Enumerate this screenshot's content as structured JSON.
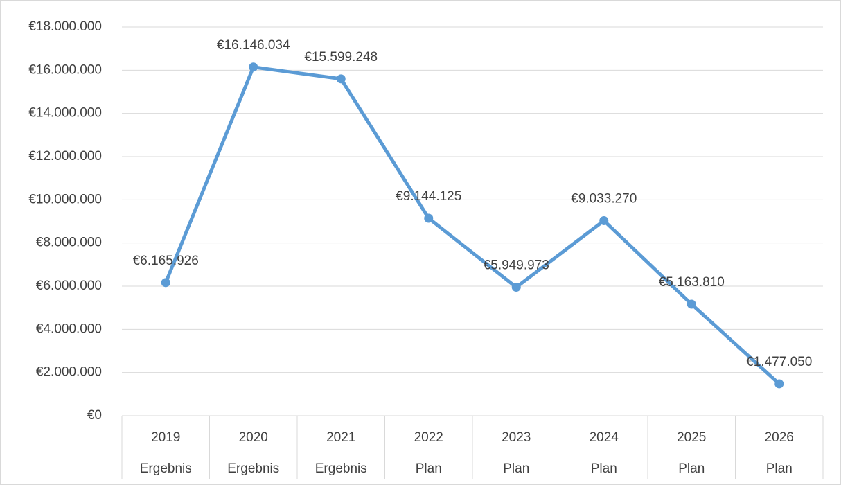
{
  "chart_data": {
    "type": "line",
    "categories": [
      "2019",
      "2020",
      "2021",
      "2022",
      "2023",
      "2024",
      "2025",
      "2026"
    ],
    "subcategories": [
      "Ergebnis",
      "Ergebnis",
      "Ergebnis",
      "Plan",
      "Plan",
      "Plan",
      "Plan",
      "Plan"
    ],
    "series": [
      {
        "color": "#5b9bd5",
        "values": [
          6165926,
          16146034,
          15599248,
          9144125,
          5949973,
          9033270,
          5163810,
          1477050
        ],
        "value_labels": [
          "€6.165.926",
          "€16.146.034",
          "€15.599.248",
          "€9.144.125",
          "€5.949.973",
          "€9.033.270",
          "€5.163.810",
          "€1.477.050"
        ]
      }
    ],
    "ylim": [
      0,
      18000000
    ],
    "yticks": [
      {
        "value": 0,
        "label": "€0"
      },
      {
        "value": 2000000,
        "label": "€2.000.000"
      },
      {
        "value": 4000000,
        "label": "€4.000.000"
      },
      {
        "value": 6000000,
        "label": "€6.000.000"
      },
      {
        "value": 8000000,
        "label": "€8.000.000"
      },
      {
        "value": 10000000,
        "label": "€10.000.000"
      },
      {
        "value": 12000000,
        "label": "€12.000.000"
      },
      {
        "value": 14000000,
        "label": "€14.000.000"
      },
      {
        "value": 16000000,
        "label": "€16.000.000"
      },
      {
        "value": 18000000,
        "label": "€18.000.000"
      }
    ],
    "grid": true
  }
}
